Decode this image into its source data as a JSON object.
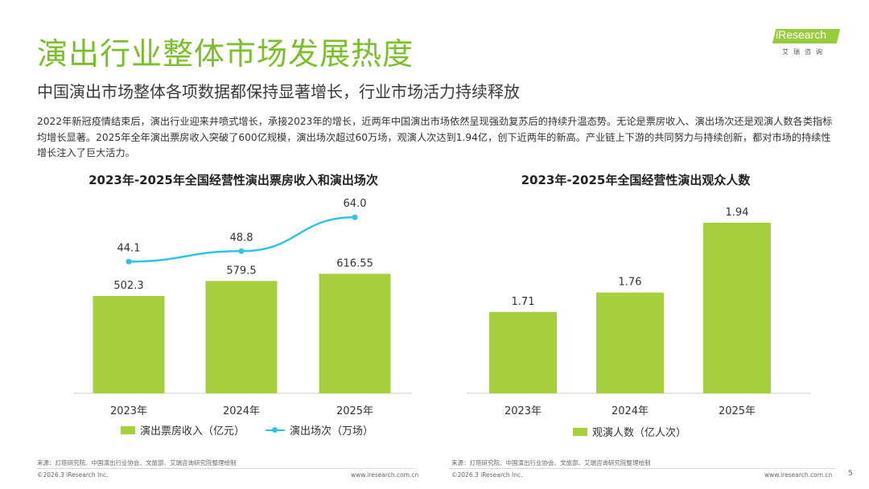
{
  "header": {
    "title": "演出行业整体市场发展热度",
    "subtitle": "中国演出市场整体各项数据都保持显著增长，行业市场活力持续释放",
    "logo_text": "iResearch",
    "logo_cn": "艾瑞咨询"
  },
  "body": {
    "paragraph": "2022年新冠疫情结束后，演出行业迎来井喷式增长，承接2023年的增长，近两年中国演出市场依然呈现强劲复苏后的持续升温态势。无论是票房收入、演出场次还是观演人数各类指标均增长显著。2025年全年演出票房收入突破了600亿规模，演出场次超过60万场，观演人次达到1.94亿，创下近两年的新高。产业链上下游的共同努力与持续创新，都对市场的持续性增长注入了巨大活力。"
  },
  "chart_data": [
    {
      "type": "bar",
      "title": "2023年-2025年全国经营性演出票房收入和演出场次",
      "categories": [
        "2023年",
        "2024年",
        "2025年"
      ],
      "series": [
        {
          "name": "演出票房收入（亿元）",
          "type": "bar",
          "values": [
            502.3,
            579.5,
            616.55
          ],
          "labels": [
            "502.3",
            "579.5",
            "616.55"
          ]
        },
        {
          "name": "演出场次（万场）",
          "type": "line",
          "values": [
            44.1,
            48.8,
            64.0
          ],
          "labels": [
            "44.1",
            "48.8",
            "64.0"
          ]
        }
      ],
      "ylim": [
        0,
        1000
      ],
      "y2lim": [
        -15,
        72
      ]
    },
    {
      "type": "bar",
      "title": "2023年-2025年全国经营性演出观众人数",
      "categories": [
        "2023年",
        "2024年",
        "2025年"
      ],
      "series": [
        {
          "name": "观演人数（亿人次）",
          "type": "bar",
          "values": [
            1.71,
            1.76,
            1.94
          ],
          "labels": [
            "1.71",
            "1.76",
            "1.94"
          ]
        }
      ],
      "ylim": [
        1.5,
        2.0
      ]
    }
  ],
  "colors": {
    "accent": "#7bbf2a",
    "bar": "#a5cf3f",
    "line": "#2ec4e6"
  },
  "footer": {
    "source_left": "来源：灯塔研究院、中国演出行业协会、文旅部、艾瑞咨询研究院整理绘制",
    "source_right": "来源：灯塔研究院、中国演出行业协会、文旅部、艾瑞咨询研究院整理绘制",
    "copyright_left": "©2026.3 iResearch Inc.",
    "url_left": "www.iresearch.com.cn",
    "copyright_right": "©2026.3 iResearch Inc.",
    "url_right": "www.iresearch.com.cn",
    "page_number": "5"
  }
}
